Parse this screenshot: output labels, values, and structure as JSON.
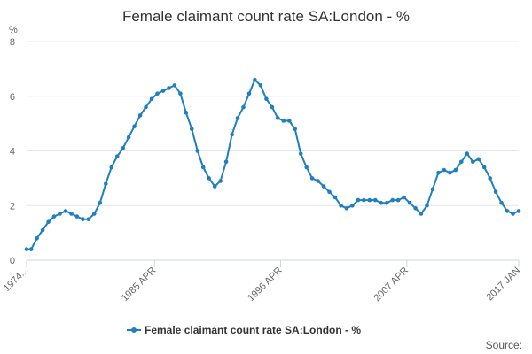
{
  "chart_data": {
    "type": "line",
    "title": "Female claimant count rate SA:London - %",
    "ylabel": "%",
    "ylim": [
      0,
      8
    ],
    "y_ticks": [
      "0",
      "2",
      "4",
      "6",
      "8"
    ],
    "x_tick_labels": [
      "1974...",
      "1985 APR",
      "1996 APR",
      "2007 APR",
      "2017 JAN"
    ],
    "x_tick_dates": [
      1974.1,
      1985.25,
      1996.25,
      2007.25,
      2017.0
    ],
    "xlim": [
      1974.1,
      2017.0
    ],
    "grid": true,
    "legend_position": "bottom",
    "series": [
      {
        "name": "Female claimant count rate SA:London - %",
        "color": "#1f7fbf",
        "x": [
          1974.1,
          1974.5,
          1975.0,
          1975.5,
          1976.0,
          1976.5,
          1977.0,
          1977.5,
          1978.0,
          1978.5,
          1979.0,
          1979.5,
          1980.0,
          1980.5,
          1981.0,
          1981.5,
          1982.0,
          1982.5,
          1983.0,
          1983.5,
          1984.0,
          1984.5,
          1985.0,
          1985.5,
          1986.0,
          1986.5,
          1987.0,
          1987.5,
          1988.0,
          1988.5,
          1989.0,
          1989.5,
          1990.0,
          1990.5,
          1991.0,
          1991.5,
          1992.0,
          1992.5,
          1993.0,
          1993.5,
          1994.0,
          1994.5,
          1995.0,
          1995.5,
          1996.0,
          1996.5,
          1997.0,
          1997.5,
          1998.0,
          1998.5,
          1999.0,
          1999.5,
          2000.0,
          2000.5,
          2001.0,
          2001.5,
          2002.0,
          2002.5,
          2003.0,
          2003.5,
          2004.0,
          2004.5,
          2005.0,
          2005.5,
          2006.0,
          2006.5,
          2007.0,
          2007.5,
          2008.0,
          2008.5,
          2009.0,
          2009.5,
          2010.0,
          2010.5,
          2011.0,
          2011.5,
          2012.0,
          2012.5,
          2013.0,
          2013.5,
          2014.0,
          2014.5,
          2015.0,
          2015.5,
          2016.0,
          2016.5,
          2017.0
        ],
        "y": [
          0.4,
          0.4,
          0.8,
          1.1,
          1.4,
          1.6,
          1.7,
          1.8,
          1.7,
          1.6,
          1.5,
          1.5,
          1.7,
          2.1,
          2.8,
          3.4,
          3.8,
          4.1,
          4.5,
          4.9,
          5.3,
          5.6,
          5.9,
          6.1,
          6.2,
          6.3,
          6.4,
          6.1,
          5.4,
          4.8,
          4.0,
          3.4,
          3.0,
          2.7,
          2.9,
          3.6,
          4.6,
          5.2,
          5.6,
          6.1,
          6.6,
          6.4,
          5.9,
          5.6,
          5.2,
          5.1,
          5.1,
          4.8,
          3.9,
          3.4,
          3.0,
          2.9,
          2.7,
          2.5,
          2.3,
          2.0,
          1.9,
          2.0,
          2.2,
          2.2,
          2.2,
          2.2,
          2.1,
          2.1,
          2.2,
          2.2,
          2.3,
          2.1,
          1.9,
          1.7,
          2.0,
          2.6,
          3.2,
          3.3,
          3.2,
          3.3,
          3.6,
          3.9,
          3.6,
          3.7,
          3.4,
          3.0,
          2.5,
          2.1,
          1.8,
          1.7,
          1.8
        ]
      }
    ]
  },
  "credits": "Source:"
}
